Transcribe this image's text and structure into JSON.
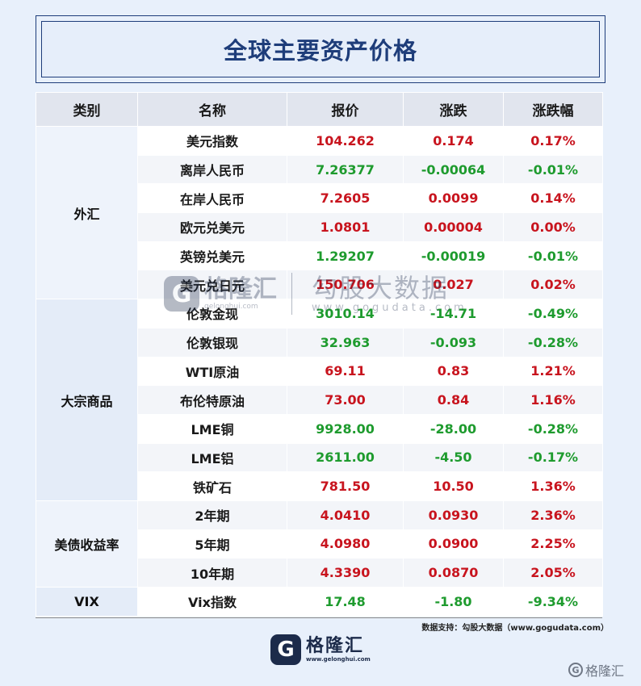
{
  "title": "全球主要资产价格",
  "headers": [
    "类别",
    "名称",
    "报价",
    "涨跌",
    "涨跌幅"
  ],
  "groups": [
    {
      "category": "外汇",
      "rows": [
        {
          "name": "美元指数",
          "price": "104.262",
          "change": "0.174",
          "pct": "0.17%",
          "dir": "up"
        },
        {
          "name": "离岸人民币",
          "price": "7.26377",
          "change": "-0.00064",
          "pct": "-0.01%",
          "dir": "down"
        },
        {
          "name": "在岸人民币",
          "price": "7.2605",
          "change": "0.0099",
          "pct": "0.14%",
          "dir": "up"
        },
        {
          "name": "欧元兑美元",
          "price": "1.0801",
          "change": "0.00004",
          "pct": "0.00%",
          "dir": "up"
        },
        {
          "name": "英镑兑美元",
          "price": "1.29207",
          "change": "-0.00019",
          "pct": "-0.01%",
          "dir": "down"
        },
        {
          "name": "美元兑日元",
          "price": "150.706",
          "change": "0.027",
          "pct": "0.02%",
          "dir": "up"
        }
      ]
    },
    {
      "category": "大宗商品",
      "rows": [
        {
          "name": "伦敦金现",
          "price": "3010.14",
          "change": "-14.71",
          "pct": "-0.49%",
          "dir": "down"
        },
        {
          "name": "伦敦银现",
          "price": "32.963",
          "change": "-0.093",
          "pct": "-0.28%",
          "dir": "down"
        },
        {
          "name": "WTI原油",
          "price": "69.11",
          "change": "0.83",
          "pct": "1.21%",
          "dir": "up"
        },
        {
          "name": "布伦特原油",
          "price": "73.00",
          "change": "0.84",
          "pct": "1.16%",
          "dir": "up"
        },
        {
          "name": "LME铜",
          "price": "9928.00",
          "change": "-28.00",
          "pct": "-0.28%",
          "dir": "down"
        },
        {
          "name": "LME铝",
          "price": "2611.00",
          "change": "-4.50",
          "pct": "-0.17%",
          "dir": "down"
        },
        {
          "name": "铁矿石",
          "price": "781.50",
          "change": "10.50",
          "pct": "1.36%",
          "dir": "up"
        }
      ]
    },
    {
      "category": "美债收益率",
      "rows": [
        {
          "name": "2年期",
          "price": "4.0410",
          "change": "0.0930",
          "pct": "2.36%",
          "dir": "up"
        },
        {
          "name": "5年期",
          "price": "4.0980",
          "change": "0.0900",
          "pct": "2.25%",
          "dir": "up"
        },
        {
          "name": "10年期",
          "price": "4.3390",
          "change": "0.0870",
          "pct": "2.05%",
          "dir": "up"
        }
      ]
    },
    {
      "category": "VIX",
      "rows": [
        {
          "name": "Vix指数",
          "price": "17.48",
          "change": "-1.80",
          "pct": "-9.34%",
          "dir": "down"
        }
      ]
    }
  ],
  "source": "数据支持：勾股大数据（www.gogudata.com）",
  "logo": {
    "mark": "G",
    "name": "格隆汇",
    "url": "www.gelonghui.com"
  },
  "overlay_watermark": {
    "name": "格隆汇",
    "url": "gelonghui.com",
    "name2": "勾股大数据",
    "url2": "www.gogudata.com"
  },
  "corner_watermark": {
    "mark": "G",
    "name": "格隆汇"
  },
  "colors": {
    "up": "#c8141e",
    "down": "#1e9b2e",
    "title": "#1e3d7a"
  }
}
